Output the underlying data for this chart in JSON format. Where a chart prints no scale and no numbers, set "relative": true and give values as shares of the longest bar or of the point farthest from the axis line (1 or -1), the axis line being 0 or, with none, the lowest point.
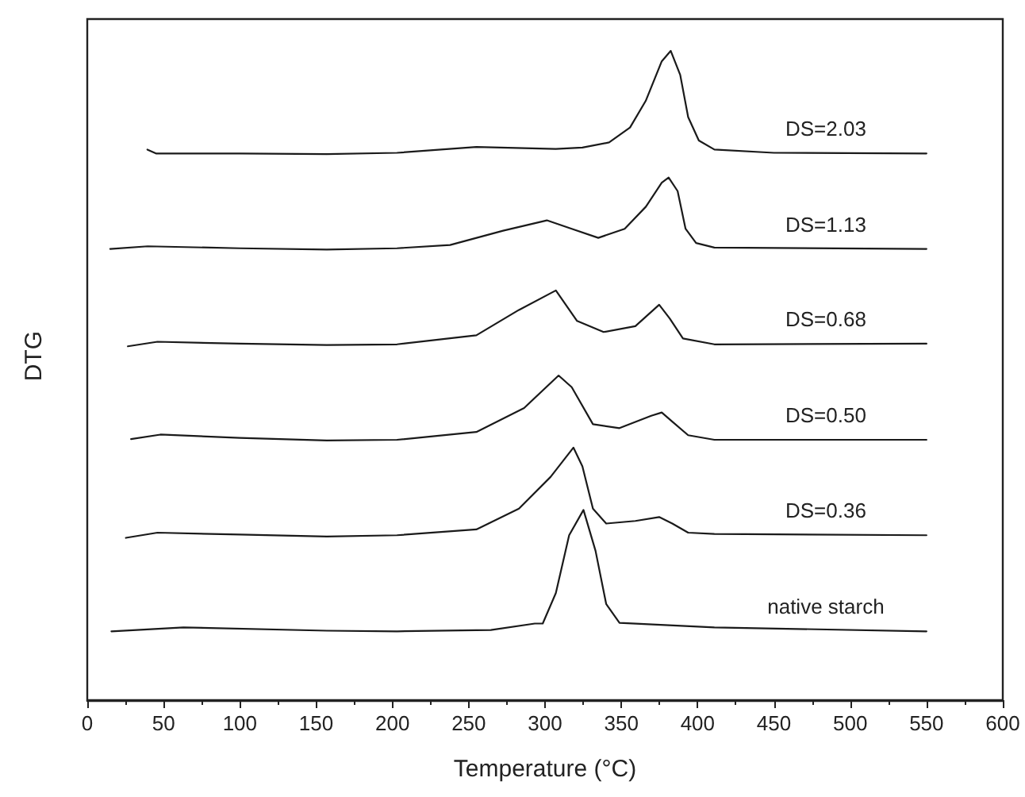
{
  "chart_data": {
    "type": "line",
    "xlabel": "Temperature (°C)",
    "ylabel": "DTG",
    "relative": true,
    "xlim": [
      0,
      600
    ],
    "xticks": [
      0,
      50,
      100,
      150,
      200,
      250,
      300,
      350,
      400,
      450,
      500,
      550,
      600
    ],
    "grid": false,
    "legend": false,
    "marker": "none",
    "line_style": "solid",
    "series": [
      {
        "name": "DS=2.03",
        "color": "#1a1a1a",
        "x": [
          39.4,
          45,
          100,
          157,
          203,
          255,
          307,
          324.5,
          342,
          355.7,
          366,
          376.5,
          382.4,
          388.6,
          393.8,
          400.8,
          411,
          450,
          550
        ],
        "values": [
          0.848,
          0.842,
          0.842,
          0.841,
          0.843,
          0.852,
          0.849,
          0.851,
          0.859,
          0.882,
          0.923,
          0.984,
          1.0,
          0.963,
          0.898,
          0.862,
          0.848,
          0.843,
          0.842
        ]
      },
      {
        "name": "DS=1.13",
        "color": "#1a1a1a",
        "x": [
          15,
          39.6,
          100,
          157,
          203,
          237.8,
          272.5,
          301.2,
          317.5,
          334.9,
          352.2,
          366.1,
          376.5,
          381,
          386.9,
          392.1,
          399,
          411,
          550
        ],
        "values": [
          0.695,
          0.699,
          0.696,
          0.694,
          0.696,
          0.701,
          0.723,
          0.739,
          0.726,
          0.712,
          0.726,
          0.76,
          0.797,
          0.805,
          0.784,
          0.726,
          0.704,
          0.697,
          0.695
        ]
      },
      {
        "name": "DS=0.68",
        "color": "#1a1a1a",
        "x": [
          26.6,
          46,
          100,
          157,
          203,
          255,
          282.9,
          307.1,
          321,
          338.4,
          359.2,
          374.8,
          381.7,
          390.4,
          411,
          550
        ],
        "values": [
          0.545,
          0.552,
          0.549,
          0.547,
          0.548,
          0.562,
          0.601,
          0.631,
          0.584,
          0.567,
          0.576,
          0.609,
          0.588,
          0.557,
          0.548,
          0.549
        ]
      },
      {
        "name": "DS=0.50",
        "color": "#1a1a1a",
        "x": [
          28.7,
          47.9,
          100,
          157,
          203,
          255,
          286.3,
          308.9,
          317.5,
          331.4,
          348.8,
          369.6,
          376.5,
          383.4,
          393.8,
          411,
          550
        ],
        "values": [
          0.402,
          0.409,
          0.404,
          0.4,
          0.401,
          0.413,
          0.45,
          0.5,
          0.482,
          0.425,
          0.419,
          0.438,
          0.443,
          0.429,
          0.408,
          0.401,
          0.401
        ]
      },
      {
        "name": "DS=0.36",
        "color": "#1a1a1a",
        "x": [
          25.3,
          46,
          100,
          157,
          203,
          255,
          282.9,
          303.7,
          318.6,
          324.5,
          331.4,
          340.1,
          359.2,
          374.8,
          383.4,
          393.8,
          411,
          550
        ],
        "values": [
          0.25,
          0.258,
          0.255,
          0.252,
          0.254,
          0.263,
          0.295,
          0.344,
          0.389,
          0.36,
          0.295,
          0.272,
          0.276,
          0.282,
          0.272,
          0.258,
          0.256,
          0.254
        ]
      },
      {
        "name": "native starch",
        "color": "#1a1a1a",
        "x": [
          15.8,
          63,
          157,
          203,
          264.5,
          293.3,
          298.5,
          307.1,
          315.8,
          325.2,
          333.1,
          340.1,
          348.8,
          411,
          550
        ],
        "values": [
          0.106,
          0.112,
          0.107,
          0.106,
          0.108,
          0.118,
          0.118,
          0.165,
          0.254,
          0.293,
          0.23,
          0.148,
          0.119,
          0.112,
          0.106
        ]
      }
    ]
  }
}
